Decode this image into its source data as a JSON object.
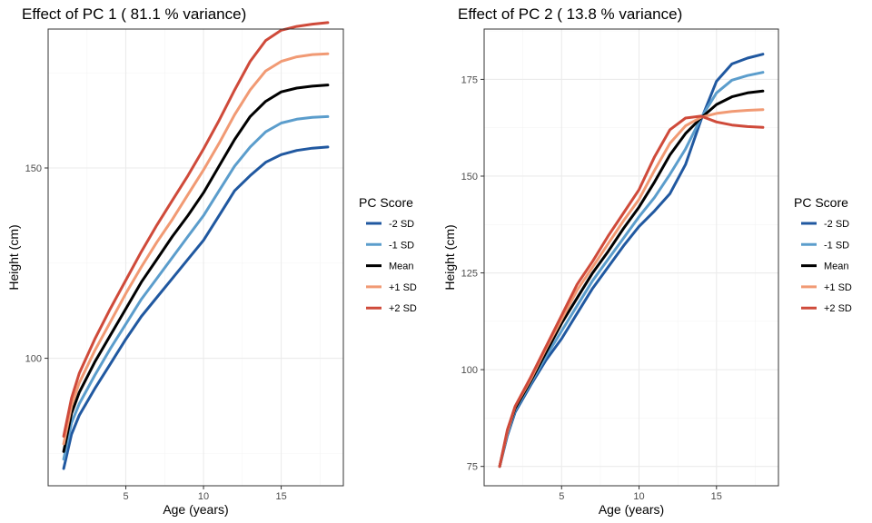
{
  "chart_data": [
    {
      "type": "line",
      "title": "Effect of PC 1 ( 81.1 % variance)",
      "xlabel": "Age (years)",
      "ylabel": "Height (cm)",
      "xlim": [
        0,
        19
      ],
      "ylim": [
        66.5,
        186.5
      ],
      "xticks": [
        5,
        10,
        15
      ],
      "yticks": [
        100,
        150
      ],
      "grid": true,
      "legend": {
        "title": "PC Score",
        "placement": "right",
        "entries": [
          "-2 SD",
          "-1 SD",
          "Mean",
          "+1 SD",
          "+2 SD"
        ]
      },
      "x": [
        1,
        1.5,
        2,
        3,
        4,
        5,
        6,
        7,
        8,
        9,
        10,
        11,
        12,
        13,
        14,
        15,
        16,
        17,
        18
      ],
      "series": [
        {
          "name": "-2 SD",
          "color": "#2058a0",
          "values": [
            71,
            80,
            85,
            92,
            98.5,
            105,
            111,
            116,
            121,
            126,
            131,
            137.5,
            144,
            148,
            151.5,
            153.5,
            154.6,
            155.2,
            155.5
          ]
        },
        {
          "name": "-1 SD",
          "color": "#5b9dcc",
          "values": [
            73.5,
            83,
            88,
            95.5,
            102.5,
            109,
            115.5,
            121,
            126.5,
            132,
            137.5,
            144,
            150.5,
            155.5,
            159.5,
            161.8,
            162.8,
            163.3,
            163.5
          ]
        },
        {
          "name": "Mean",
          "color": "#000000",
          "values": [
            75.5,
            85.5,
            91,
            99,
            106,
            113,
            120,
            126,
            132,
            137.5,
            143.5,
            150.5,
            157.5,
            163.5,
            167.5,
            170,
            171,
            171.5,
            171.8
          ]
        },
        {
          "name": "+1 SD",
          "color": "#f19a74",
          "values": [
            77.5,
            87.5,
            93.5,
            102,
            109.5,
            117,
            124,
            130.5,
            136.5,
            143,
            149.5,
            156.5,
            164,
            170.5,
            175.5,
            178,
            179.2,
            179.8,
            180
          ]
        },
        {
          "name": "+2 SD",
          "color": "#cf4a3a",
          "values": [
            79.5,
            89.5,
            96,
            105,
            113,
            120.5,
            128,
            135,
            141.5,
            148,
            155,
            162.5,
            170.5,
            178,
            183.5,
            186.2,
            187.2,
            187.8,
            188.2
          ]
        }
      ]
    },
    {
      "type": "line",
      "title": "Effect of PC 2 ( 13.8 % variance)",
      "xlabel": "Age (years)",
      "ylabel": "Height (cm)",
      "xlim": [
        0,
        19
      ],
      "ylim": [
        70,
        188
      ],
      "xticks": [
        5,
        10,
        15
      ],
      "yticks": [
        75,
        100,
        125,
        150,
        175
      ],
      "grid": true,
      "legend": {
        "title": "PC Score",
        "placement": "right",
        "entries": [
          "-2 SD",
          "-1 SD",
          "Mean",
          "+1 SD",
          "+2 SD"
        ]
      },
      "x": [
        1,
        1.5,
        2,
        3,
        4,
        5,
        6,
        7,
        8,
        9,
        10,
        11,
        12,
        13,
        14,
        15,
        16,
        17,
        18
      ],
      "series": [
        {
          "name": "-2 SD",
          "color": "#2058a0",
          "values": [
            75,
            83,
            89,
            96,
            102.5,
            108,
            114.5,
            121,
            126.5,
            132,
            137,
            141,
            145.5,
            153,
            164.5,
            174.5,
            179,
            180.5,
            181.5
          ]
        },
        {
          "name": "-1 SD",
          "color": "#5b9dcc",
          "values": [
            75,
            83.5,
            89.5,
            96.5,
            103.5,
            110,
            116.5,
            123,
            128.5,
            134,
            139.5,
            144.5,
            150.5,
            157,
            165,
            171.5,
            174.8,
            176,
            176.8
          ]
        },
        {
          "name": "Mean",
          "color": "#000000",
          "values": [
            75,
            84,
            90,
            97,
            104.5,
            112,
            118.5,
            125,
            130.5,
            136.5,
            142,
            148.5,
            155.5,
            161,
            165,
            168.5,
            170.5,
            171.5,
            172
          ]
        },
        {
          "name": "+1 SD",
          "color": "#f19a74",
          "values": [
            75,
            84,
            90.5,
            97.5,
            105.5,
            113,
            120.5,
            126.5,
            132.5,
            138.5,
            144,
            151.5,
            158.5,
            163,
            165.2,
            166.2,
            166.7,
            167,
            167.2
          ]
        },
        {
          "name": "+2 SD",
          "color": "#cf4a3a",
          "values": [
            75,
            84.5,
            90.5,
            98,
            106,
            114,
            122,
            128,
            134.5,
            140.5,
            146.5,
            155,
            162,
            165,
            165.5,
            164,
            163.2,
            162.8,
            162.6
          ]
        }
      ]
    }
  ]
}
